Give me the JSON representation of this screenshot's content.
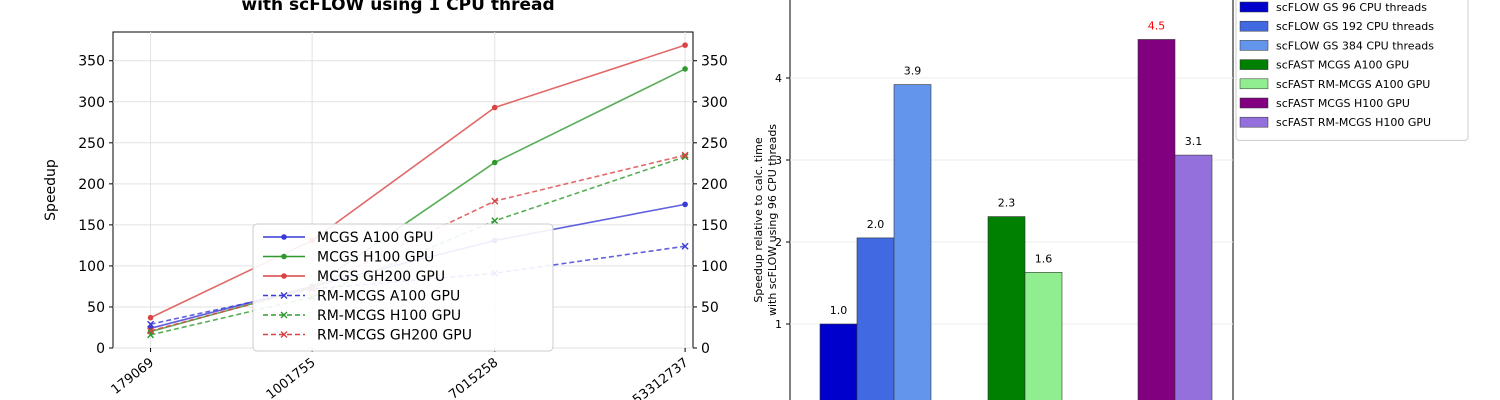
{
  "chart_data": [
    {
      "type": "line",
      "title": "with scFLOW using 1 CPU thread",
      "xlabel": "",
      "ylabel": "Speedup",
      "x_ticks": [
        "179069",
        "1001755",
        "7015258",
        "53312737"
      ],
      "x": [
        179069,
        1001755,
        7015258,
        53312737
      ],
      "ylim": [
        0,
        385
      ],
      "y_ticks": [
        0,
        50,
        100,
        150,
        200,
        250,
        300,
        350
      ],
      "grid": true,
      "legend_position": "center",
      "series": [
        {
          "name": "MCGS A100 GPU",
          "color": "#3a3ad6",
          "style": "solid",
          "marker": "o",
          "values": [
            24,
            75,
            131,
            175
          ]
        },
        {
          "name": "MCGS H100 GPU",
          "color": "#2e9a2e",
          "style": "solid",
          "marker": "o",
          "values": [
            20,
            74,
            226,
            340
          ]
        },
        {
          "name": "MCGS GH200 GPU",
          "color": "#d94343",
          "style": "solid",
          "marker": "o",
          "values": [
            37,
            131,
            293,
            369
          ]
        },
        {
          "name": "RM-MCGS A100 GPU",
          "color": "#3a3ad6",
          "style": "dashed",
          "marker": "x",
          "values": [
            29,
            72,
            91,
            124
          ]
        },
        {
          "name": "RM-MCGS H100 GPU",
          "color": "#2e9a2e",
          "style": "dashed",
          "marker": "x",
          "values": [
            16,
            62,
            155,
            233
          ]
        },
        {
          "name": "RM-MCGS GH200 GPU",
          "color": "#d94343",
          "style": "dashed",
          "marker": "x",
          "values": [
            21,
            73,
            179,
            235
          ]
        }
      ]
    },
    {
      "type": "bar",
      "title": "",
      "xlabel": "",
      "ylabel": "Speedup relative to calc. time",
      "ylabel2": "with scFLOW using 96 CPU threads",
      "ylim": [
        0,
        5
      ],
      "y_ticks": [
        1,
        2,
        3,
        4
      ],
      "grid": true,
      "legend_position": "right",
      "groups": [
        [
          {
            "name": "scFLOW GS 96 CPU threads",
            "value": 1.0,
            "label": "1.0",
            "color": "#0000cd"
          },
          {
            "name": "scFLOW GS 192 CPU threads",
            "value": 2.05,
            "label": "2.0",
            "color": "#4169e1"
          },
          {
            "name": "scFLOW GS 384 CPU threads",
            "value": 3.92,
            "label": "3.9",
            "color": "#6495ed"
          }
        ],
        [
          {
            "name": "scFAST MCGS A100 GPU",
            "value": 2.31,
            "label": "2.3",
            "color": "#008000"
          },
          {
            "name": "scFAST RM-MCGS A100 GPU",
            "value": 1.63,
            "label": "1.6",
            "color": "#90ee90"
          }
        ],
        [
          {
            "name": "scFAST MCGS H100 GPU",
            "value": 4.47,
            "label": "4.5",
            "color": "#800080",
            "label_color": "#ff0000"
          },
          {
            "name": "scFAST RM-MCGS H100 GPU",
            "value": 3.06,
            "label": "3.1",
            "color": "#9370db"
          }
        ]
      ],
      "legend": [
        {
          "name": "scFLOW GS 96 CPU threads",
          "color": "#0000cd"
        },
        {
          "name": "scFLOW GS 192 CPU threads",
          "color": "#4169e1"
        },
        {
          "name": "scFLOW GS 384 CPU threads",
          "color": "#6495ed"
        },
        {
          "name": "scFAST MCGS A100 GPU",
          "color": "#008000"
        },
        {
          "name": "scFAST RM-MCGS A100 GPU",
          "color": "#90ee90"
        },
        {
          "name": "scFAST MCGS H100 GPU",
          "color": "#800080"
        },
        {
          "name": "scFAST RM-MCGS H100 GPU",
          "color": "#9370db"
        }
      ]
    }
  ]
}
